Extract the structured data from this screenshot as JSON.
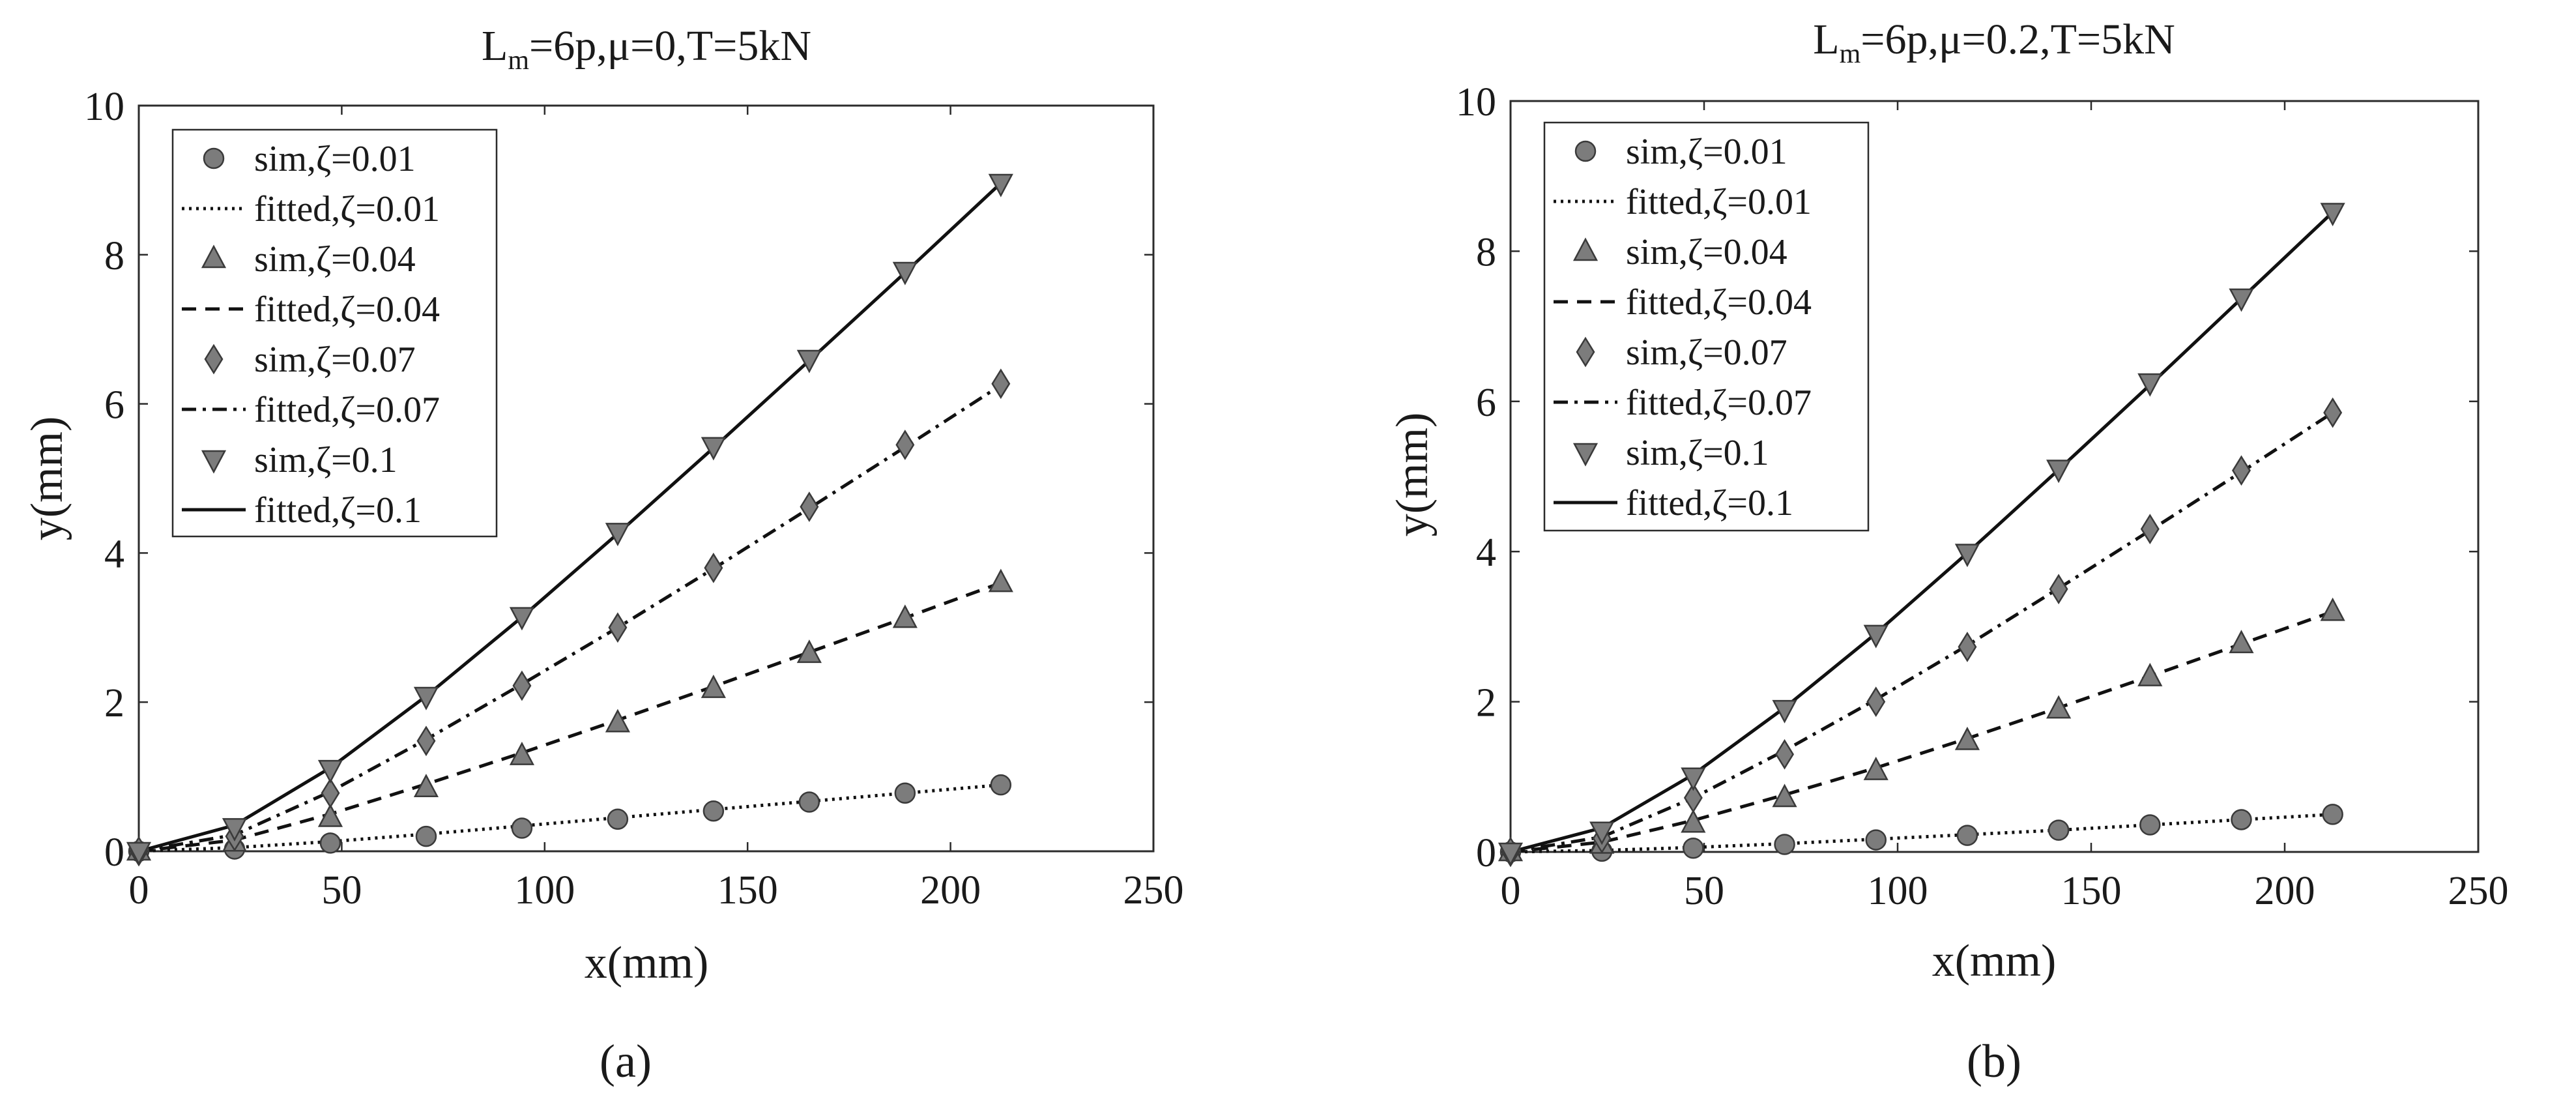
{
  "chart_data": [
    {
      "type": "line",
      "panel_label": "(a)",
      "title_base": "L",
      "title_sub": "m",
      "title_rest": "=6p,μ=0,T=5kN",
      "xlabel": "x(mm)",
      "ylabel": "y(mm)",
      "xlim": [
        0,
        250
      ],
      "ylim": [
        0,
        10
      ],
      "xticks": [
        "0",
        "50",
        "100",
        "150",
        "200",
        "250"
      ],
      "yticks": [
        "0",
        "2",
        "4",
        "6",
        "8",
        "10"
      ],
      "legend_position": "top-left",
      "legend": [
        {
          "label": "sim,ζ=0.01",
          "kind": "marker",
          "marker": "circle"
        },
        {
          "label": "fitted,ζ=0.01",
          "kind": "line",
          "dash": "dotted"
        },
        {
          "label": "sim,ζ=0.04",
          "kind": "marker",
          "marker": "triangle-up"
        },
        {
          "label": "fitted,ζ=0.04",
          "kind": "line",
          "dash": "dashed"
        },
        {
          "label": "sim,ζ=0.07",
          "kind": "marker",
          "marker": "diamond"
        },
        {
          "label": "fitted,ζ=0.07",
          "kind": "line",
          "dash": "dashdot"
        },
        {
          "label": "sim,ζ=0.1",
          "kind": "marker",
          "marker": "triangle-down"
        },
        {
          "label": "fitted,ζ=0.1",
          "kind": "line",
          "dash": "solid"
        }
      ],
      "x": [
        0,
        23.6,
        47.2,
        70.8,
        94.4,
        118,
        141.6,
        165.2,
        188.8,
        212.4
      ],
      "series": [
        {
          "name": "ζ=0.01",
          "marker": "circle",
          "dash": "dotted",
          "sim": [
            0,
            0.03,
            0.11,
            0.2,
            0.31,
            0.43,
            0.54,
            0.66,
            0.78,
            0.89
          ],
          "fitted": [
            0,
            0.05,
            0.13,
            0.23,
            0.34,
            0.45,
            0.56,
            0.67,
            0.78,
            0.89
          ]
        },
        {
          "name": "ζ=0.04",
          "marker": "triangle-up",
          "dash": "dashed",
          "sim": [
            0,
            0.12,
            0.45,
            0.85,
            1.28,
            1.72,
            2.18,
            2.65,
            3.12,
            3.6
          ],
          "fitted": [
            0,
            0.15,
            0.5,
            0.9,
            1.32,
            1.76,
            2.21,
            2.67,
            3.13,
            3.6
          ]
        },
        {
          "name": "ζ=0.07",
          "marker": "diamond",
          "dash": "dashdot",
          "sim": [
            0,
            0.2,
            0.78,
            1.48,
            2.22,
            3.0,
            3.8,
            4.62,
            5.45,
            6.27
          ],
          "fitted": [
            0,
            0.22,
            0.8,
            1.5,
            2.24,
            3.0,
            3.79,
            4.6,
            5.42,
            6.25
          ]
        },
        {
          "name": "ζ=0.1",
          "marker": "triangle-down",
          "dash": "solid",
          "sim": [
            0,
            0.32,
            1.1,
            2.08,
            3.15,
            4.28,
            5.43,
            6.6,
            7.78,
            8.96
          ],
          "fitted": [
            0,
            0.35,
            1.12,
            2.08,
            3.14,
            4.26,
            5.41,
            6.58,
            7.76,
            8.96
          ]
        }
      ]
    },
    {
      "type": "line",
      "panel_label": "(b)",
      "title_base": "L",
      "title_sub": "m",
      "title_rest": "=6p,μ=0.2,T=5kN",
      "xlabel": "x(mm)",
      "ylabel": "y(mm)",
      "xlim": [
        0,
        250
      ],
      "ylim": [
        0,
        10
      ],
      "xticks": [
        "0",
        "50",
        "100",
        "150",
        "200",
        "250"
      ],
      "yticks": [
        "0",
        "2",
        "4",
        "6",
        "8",
        "10"
      ],
      "legend_position": "top-left",
      "legend": [
        {
          "label": "sim,ζ=0.01",
          "kind": "marker",
          "marker": "circle"
        },
        {
          "label": "fitted,ζ=0.01",
          "kind": "line",
          "dash": "dotted"
        },
        {
          "label": "sim,ζ=0.04",
          "kind": "marker",
          "marker": "triangle-up"
        },
        {
          "label": "fitted,ζ=0.04",
          "kind": "line",
          "dash": "dashed"
        },
        {
          "label": "sim,ζ=0.07",
          "kind": "marker",
          "marker": "diamond"
        },
        {
          "label": "fitted,ζ=0.07",
          "kind": "line",
          "dash": "dashdot"
        },
        {
          "label": "sim,ζ=0.1",
          "kind": "marker",
          "marker": "triangle-down"
        },
        {
          "label": "fitted,ζ=0.1",
          "kind": "line",
          "dash": "solid"
        }
      ],
      "x": [
        0,
        23.6,
        47.2,
        70.8,
        94.4,
        118,
        141.6,
        165.2,
        188.8,
        212.4
      ],
      "series": [
        {
          "name": "ζ=0.01",
          "marker": "circle",
          "dash": "dotted",
          "sim": [
            0,
            0.01,
            0.05,
            0.1,
            0.16,
            0.22,
            0.29,
            0.36,
            0.43,
            0.5
          ],
          "fitted": [
            0,
            0.02,
            0.06,
            0.11,
            0.17,
            0.23,
            0.29,
            0.36,
            0.43,
            0.5
          ]
        },
        {
          "name": "ζ=0.04",
          "marker": "triangle-up",
          "dash": "dashed",
          "sim": [
            0,
            0.1,
            0.38,
            0.72,
            1.08,
            1.48,
            1.9,
            2.33,
            2.77,
            3.2
          ],
          "fitted": [
            0,
            0.13,
            0.42,
            0.76,
            1.12,
            1.51,
            1.92,
            2.34,
            2.77,
            3.2
          ]
        },
        {
          "name": "ζ=0.07",
          "marker": "diamond",
          "dash": "dashdot",
          "sim": [
            0,
            0.18,
            0.72,
            1.3,
            2.0,
            2.73,
            3.5,
            4.3,
            5.08,
            5.85
          ],
          "fitted": [
            0,
            0.2,
            0.72,
            1.35,
            2.03,
            2.75,
            3.51,
            4.28,
            5.06,
            5.85
          ]
        },
        {
          "name": "ζ=0.1",
          "marker": "triangle-down",
          "dash": "solid",
          "sim": [
            0,
            0.28,
            1.0,
            1.9,
            2.9,
            3.98,
            5.1,
            6.25,
            7.38,
            8.52
          ],
          "fitted": [
            0,
            0.32,
            1.03,
            1.92,
            2.91,
            3.98,
            5.09,
            6.22,
            7.37,
            8.52
          ]
        }
      ]
    }
  ]
}
